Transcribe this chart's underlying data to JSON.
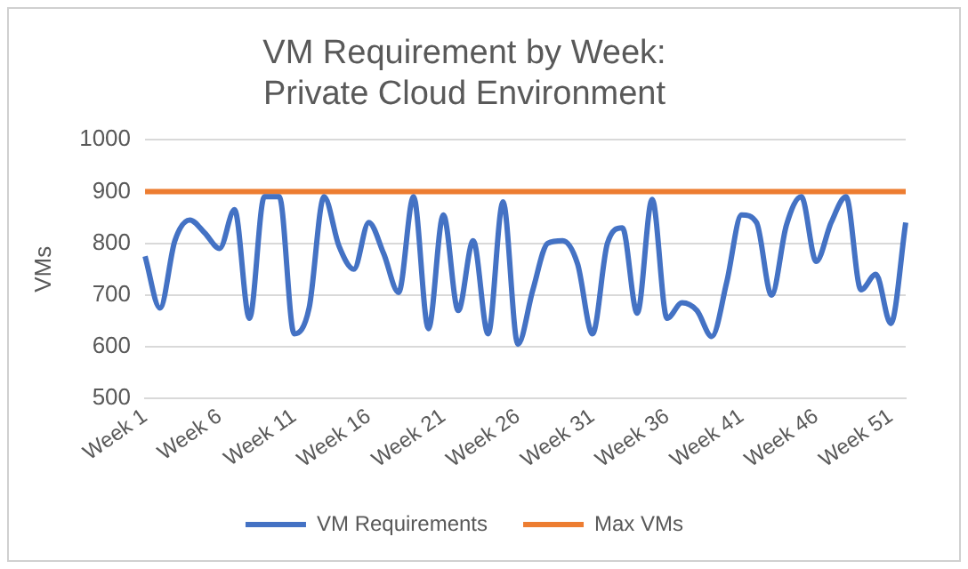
{
  "chart_data": {
    "type": "line",
    "title": "VM Requirement by Week: Private Cloud Environment",
    "ylabel": "VMs",
    "categories": [
      "Week 1",
      null,
      null,
      null,
      null,
      "Week 6",
      null,
      null,
      null,
      null,
      "Week 11",
      null,
      null,
      null,
      null,
      "Week 16",
      null,
      null,
      null,
      null,
      "Week 21",
      null,
      null,
      null,
      null,
      "Week 26",
      null,
      null,
      null,
      null,
      "Week 31",
      null,
      null,
      null,
      null,
      "Week 36",
      null,
      null,
      null,
      null,
      "Week 41",
      null,
      null,
      null,
      null,
      "Week 46",
      null,
      null,
      null,
      null,
      "Week 51",
      null
    ],
    "series": [
      {
        "name": "VM Requirements",
        "color": "#4472c4",
        "values": [
          775,
          675,
          805,
          845,
          820,
          790,
          865,
          655,
          890,
          890,
          625,
          675,
          890,
          795,
          750,
          840,
          780,
          705,
          890,
          635,
          855,
          670,
          805,
          625,
          880,
          605,
          710,
          800,
          805,
          760,
          625,
          800,
          830,
          665,
          885,
          655,
          685,
          670,
          620,
          725,
          855,
          840,
          700,
          835,
          890,
          765,
          840,
          890,
          710,
          740,
          645,
          840
        ]
      },
      {
        "name": "Max VMs",
        "color": "#ed7d31",
        "values": [
          900,
          900,
          900,
          900,
          900,
          900,
          900,
          900,
          900,
          900,
          900,
          900,
          900,
          900,
          900,
          900,
          900,
          900,
          900,
          900,
          900,
          900,
          900,
          900,
          900,
          900,
          900,
          900,
          900,
          900,
          900,
          900,
          900,
          900,
          900,
          900,
          900,
          900,
          900,
          900,
          900,
          900,
          900,
          900,
          900,
          900,
          900,
          900,
          900,
          900,
          900,
          900
        ]
      }
    ],
    "ylim": [
      500,
      1000
    ],
    "yticks": [
      500,
      600,
      700,
      800,
      900,
      1000
    ],
    "grid": "y",
    "legend": "bottom",
    "marker": "none",
    "line_style": "solid"
  }
}
